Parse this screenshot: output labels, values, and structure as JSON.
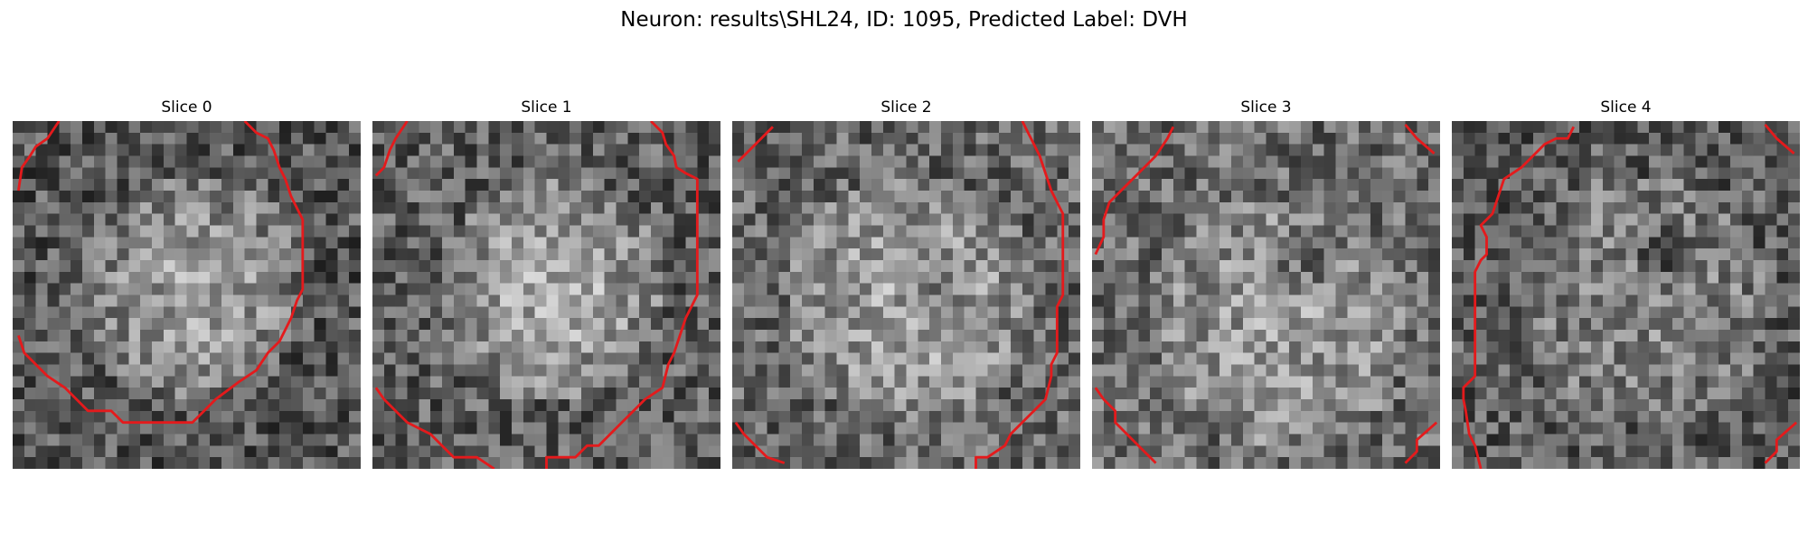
{
  "figure": {
    "title": "Neuron: results\\SHL24, ID: 1095, Predicted Label: DVH"
  },
  "panels": [
    {
      "title": "Slice 0"
    },
    {
      "title": "Slice 1"
    },
    {
      "title": "Slice 2"
    },
    {
      "title": "Slice 3"
    },
    {
      "title": "Slice 4"
    }
  ],
  "colors": {
    "contour": "#e41a1c",
    "background": "#ffffff",
    "colormap": "gray"
  }
}
